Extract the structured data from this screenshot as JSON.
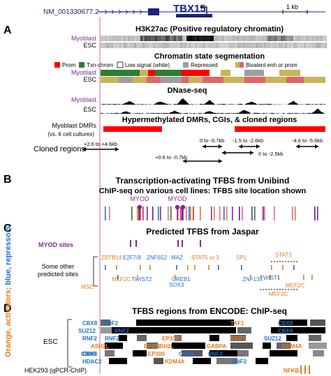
{
  "gene": {
    "transcript": "NM_001330677.2",
    "name": "TBX15",
    "scale_label": "1 kb"
  },
  "panel_a": {
    "letter": "A",
    "h3k27ac": {
      "title": "H3K27ac (Positive regulatory chromatin)",
      "rows": [
        "Myoblast",
        "ESC"
      ]
    },
    "chromatin_state": {
      "title": "Chromatin state segmentation",
      "legend": [
        {
          "label": "Prom",
          "color": "#ff0000"
        },
        {
          "label": "Txn-chrom",
          "color": "#2e7d32"
        },
        {
          "label": "Low signal (white)",
          "color": "#ffffff"
        },
        {
          "label": "Repressed",
          "color": "#9e9e9e"
        },
        {
          "label": "Bivalent enh or prom",
          "color": "#c8b45a",
          "color2": "#e06666"
        }
      ],
      "rows": [
        "Myoblast",
        "ESC"
      ]
    },
    "dnase": {
      "title": "DNase-seq",
      "rows": [
        "Myoblast",
        "ESC"
      ]
    },
    "dmr": {
      "title": "Hypermethylated DMRs, CGIs, & cloned regions",
      "row_label": "Myoblast DMRs",
      "row_sublabel": "(vs. 6 cell cultures)",
      "color": "#ff0000"
    },
    "cloned": {
      "label": "Cloned regions",
      "regions": [
        "+2.6 to +4.6kb",
        "0 to -0.7kb",
        "-1.5 to -2.6kb",
        "-4.6 to -5.6kb",
        "+0.6 to -0.7kb",
        "0 to -2.5kb"
      ]
    }
  },
  "panel_b": {
    "letter": "B",
    "title": "Transcription-activating TFBS from Unibind",
    "subtitle": "ChIP-seq on various cell lines: TFBS site location shown",
    "markers": [
      "MYOD",
      "MYOD"
    ]
  },
  "panel_c": {
    "letter": "C",
    "title": "Predicted TFBS from Jaspar",
    "myod_label": "MYOD sites",
    "other_label": [
      "Some other",
      "predicted sites"
    ],
    "sites": [
      "ZBTB14",
      "E2F7/8",
      "ZNF652",
      "MAZ",
      "STAT5 or 3",
      "SP1",
      "STAT3",
      "MEF2C",
      "TWIST2",
      "CREB1",
      "MSC",
      "SOX3",
      "ZNF135",
      "TWIST1",
      "MEF2C"
    ]
  },
  "panel_d": {
    "letter": "D",
    "title": "TFBS regions from ENCODE: ChIP-seq",
    "esc_label": "ESC",
    "hek_label": "HEK293 (qPCR-ChIP)",
    "labels": [
      "CBX8",
      "SUZ12",
      "RNF2",
      "RNF2",
      "TAF1",
      "CBX8",
      "RNF2",
      "CBX3",
      "EP300",
      "EGR1",
      "SUZ12",
      "CBX8",
      "ASH2L",
      "ASH2L",
      "GABPA",
      "KDM4A",
      "CBX8",
      "HDAC2",
      "EP300",
      "CBX8",
      "RNF2",
      "EP300",
      "KDM4A",
      "RNF2",
      "RNF2",
      "NFKB"
    ]
  },
  "side_label": {
    "orange_text": "Orange, activators",
    "separator": "; ",
    "blue_text": "blue, repressors"
  },
  "colors": {
    "activator": "#e07b1c",
    "repressor": "#1f6fd0",
    "myod": "#7b2d8e",
    "tss_line": "#e68aa0",
    "gene_blue": "#1a237e",
    "dmr_red": "#ff0000"
  }
}
